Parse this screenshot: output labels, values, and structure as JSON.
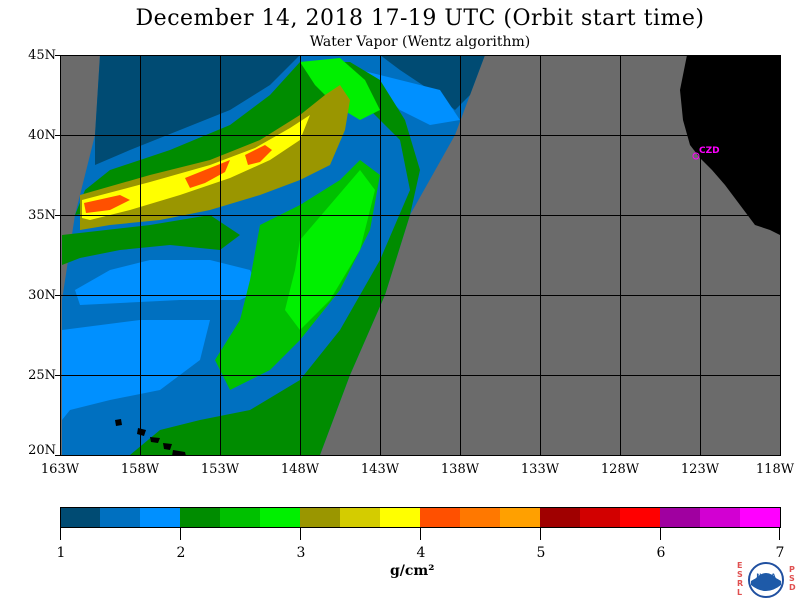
{
  "title": "December 14, 2018  17-19 UTC  (Orbit start time)",
  "subtitle": "Water Vapor (Wentz algorithm)",
  "map": {
    "lat_labels": [
      "45N",
      "40N",
      "35N",
      "30N",
      "25N",
      "20N"
    ],
    "lon_labels": [
      "163W",
      "158W",
      "153W",
      "148W",
      "143W",
      "138W",
      "133W",
      "128W",
      "123W",
      "118W"
    ],
    "no_data_color": "#6b6b6b",
    "land_color": "#000000",
    "grid_color": "#000000",
    "coast_label": "CZD",
    "coast_label_color": "#ff00ff"
  },
  "colorbar": {
    "labels": [
      "1",
      "2",
      "3",
      "4",
      "5",
      "6",
      "7"
    ],
    "units": "g/cm²",
    "colors": [
      "#004b73",
      "#0070c0",
      "#0090ff",
      "#008c00",
      "#00c000",
      "#00f000",
      "#9a9600",
      "#d4cc00",
      "#ffff00",
      "#ff5000",
      "#ff7800",
      "#ffa000",
      "#a00000",
      "#d20000",
      "#ff0000",
      "#a000a0",
      "#d200d2",
      "#ff00ff"
    ]
  },
  "logo": {
    "left_letters": [
      "E",
      "S",
      "R",
      "L"
    ],
    "right_letters": [
      "P",
      "S",
      "D"
    ],
    "text": "NOAA"
  }
}
